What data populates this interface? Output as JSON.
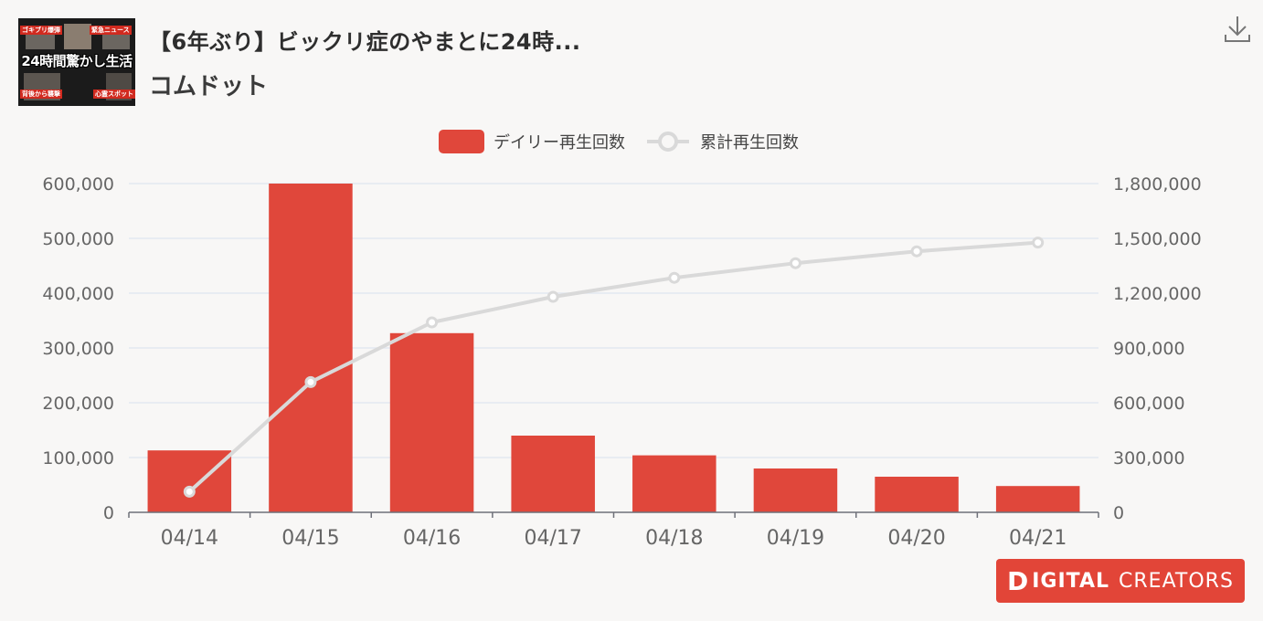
{
  "header": {
    "title": "【6年ぶり】ビックリ症のやまとに24時...",
    "channel": "コムドット",
    "thumbnail_caption": "24時間驚かし生活",
    "thumbnail_tags": [
      "ゴキブリ爆弾",
      "緊急ニュース",
      "背後から襲撃",
      "心霊スポット"
    ]
  },
  "icons": {
    "download": "download-icon"
  },
  "brand": {
    "first": "D",
    "word1": "IGITAL",
    "word2": "CREATORS"
  },
  "colors": {
    "bar": "#e0473b",
    "line": "#d9d9d9",
    "axis": "#666666",
    "grid": "#e3e8f0",
    "badge": "#e24538"
  },
  "chart_data": {
    "type": "bar",
    "categories": [
      "04/14",
      "04/15",
      "04/16",
      "04/17",
      "04/18",
      "04/19",
      "04/20",
      "04/21"
    ],
    "series": [
      {
        "name": "デイリー再生回数",
        "type": "bar",
        "axis": "left",
        "values": [
          113000,
          600000,
          327000,
          140000,
          104000,
          80000,
          65000,
          48000
        ]
      },
      {
        "name": "累計再生回数",
        "type": "line",
        "axis": "right",
        "values": [
          113000,
          713000,
          1040000,
          1180000,
          1284000,
          1364000,
          1429000,
          1477000
        ]
      }
    ],
    "y_left": {
      "min": 0,
      "max": 600000,
      "ticks": [
        "0",
        "100,000",
        "200,000",
        "300,000",
        "400,000",
        "500,000",
        "600,000"
      ]
    },
    "y_right": {
      "min": 0,
      "max": 1800000,
      "ticks": [
        "0",
        "300,000",
        "600,000",
        "900,000",
        "1,200,000",
        "1,500,000",
        "1,800,000"
      ]
    },
    "grid": true,
    "legend": "top-center"
  }
}
